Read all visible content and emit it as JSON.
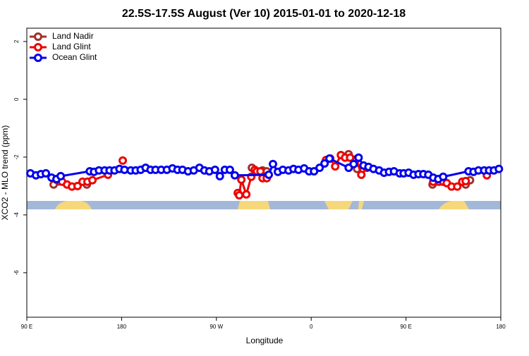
{
  "chart_data": {
    "type": "line",
    "title": "22.5S-17.5S August (Ver 10)   2015-01-01 to 2020-12-18",
    "xlabel": "Longitude",
    "ylabel": "XCO2 - MLO trend (ppm)",
    "xlim": [
      90,
      540
    ],
    "ylim": [
      -7.54,
      2.46
    ],
    "xticks": [
      {
        "value": 90,
        "label": "90 E"
      },
      180,
      {
        "value": 270,
        "label": "90 W"
      },
      {
        "value": 360,
        "label": "0"
      },
      {
        "value": 450,
        "label": "90 E"
      },
      {
        "value": 540,
        "label": "180"
      }
    ],
    "yticks": [
      -6,
      -4,
      -2,
      0,
      2
    ],
    "legend": "top-left",
    "series": [
      {
        "name": "Land Nadir",
        "color": "#a0302c",
        "x": [
          115.5,
          147,
          null,
          303.7,
          313.8,
          317.8,
          null,
          395.5,
          403.6,
          null,
          475.2,
          506.7,
          510.8
        ],
        "values": [
          -2.95,
          -2.95,
          null,
          -2.37,
          -2.46,
          -2.49,
          null,
          -1.9,
          -2.41,
          null,
          -2.95,
          -2.95,
          -2.8
        ]
      },
      {
        "name": "Land Glint",
        "color": "#ee0000",
        "x": [
          118.1,
          123.5,
          128.2,
          132.9,
          138.2,
          142.9,
          147.6,
          152.3,
          167.1,
          null,
          181.1,
          null,
          290.3,
          291.7,
          293.7,
          298.4,
          303.1,
          306.4,
          308.4,
          311.8,
          313.8,
          317.8,
          null,
          374.1,
          378.1,
          382.8,
          388.2,
          392.2,
          396.9,
          402.9,
          407.6,
          412.9,
          null,
          475.9,
          481.3,
          485.3,
          488.7,
          493.3,
          498.7,
          503.4,
          506.7,
          null,
          526.8
        ],
        "values": [
          -2.78,
          -2.85,
          -2.95,
          -3.02,
          -3.0,
          -2.85,
          -2.85,
          -2.8,
          -2.61,
          null,
          -2.12,
          null,
          -3.24,
          -3.32,
          -2.78,
          -3.29,
          -2.68,
          -2.44,
          -2.49,
          -2.49,
          -2.73,
          -2.73,
          null,
          -2.1,
          -2.05,
          -2.32,
          -1.93,
          -2.02,
          -2.02,
          -2.07,
          -2.61,
          -2.37,
          null,
          -2.85,
          -2.85,
          -2.85,
          -2.9,
          -3.02,
          -3.02,
          -2.85,
          -2.83,
          null,
          -2.63
        ]
      },
      {
        "name": "Ocean Glint",
        "color": "#0000ee",
        "x": [
          93.4,
          98.7,
          103.4,
          108.1,
          113.5,
          118.2,
          122.2,
          149.8,
          153.8,
          158.5,
          163.9,
          168.6,
          173.3,
          178.0,
          182.7,
          188.7,
          193.4,
          198.1,
          202.8,
          207.5,
          212.2,
          217.6,
          223.0,
          228.3,
          233.1,
          237.8,
          243.1,
          248.5,
          253.9,
          258.6,
          263.3,
          268.7,
          273.3,
          278.0,
          282.8,
          287.5,
          319.7,
          323.7,
          328.4,
          333.1,
          338.5,
          343.2,
          347.9,
          353.3,
          358.0,
          362.7,
          368.0,
          372.7,
          377.4,
          395.6,
          400.3,
          405.0,
          409.7,
          414.4,
          419.1,
          424.5,
          429.2,
          433.9,
          438.6,
          444.0,
          447.8,
          452.5,
          457.2,
          461.9,
          466.5,
          471.2,
          475.9,
          480.6,
          485.3,
          509.4,
          514.1,
          518.8,
          524.2,
          528.9,
          533.5,
          538.2
        ],
        "values": [
          -2.56,
          -2.63,
          -2.59,
          -2.56,
          -2.71,
          -2.76,
          -2.66,
          -2.49,
          -2.51,
          -2.46,
          -2.46,
          -2.46,
          -2.46,
          -2.41,
          -2.44,
          -2.46,
          -2.46,
          -2.44,
          -2.37,
          -2.44,
          -2.44,
          -2.44,
          -2.44,
          -2.39,
          -2.44,
          -2.44,
          -2.49,
          -2.46,
          -2.37,
          -2.46,
          -2.49,
          -2.44,
          -2.66,
          -2.44,
          -2.44,
          -2.63,
          -2.61,
          -2.24,
          -2.51,
          -2.44,
          -2.46,
          -2.41,
          -2.44,
          -2.39,
          -2.49,
          -2.49,
          -2.37,
          -2.22,
          -2.05,
          -2.37,
          -2.24,
          -2.02,
          -2.29,
          -2.34,
          -2.41,
          -2.46,
          -2.54,
          -2.51,
          -2.49,
          -2.56,
          -2.56,
          -2.54,
          -2.61,
          -2.59,
          -2.59,
          -2.61,
          -2.71,
          -2.76,
          -2.68,
          -2.49,
          -2.51,
          -2.46,
          -2.46,
          -2.46,
          -2.46,
          -2.41
        ]
      }
    ]
  }
}
